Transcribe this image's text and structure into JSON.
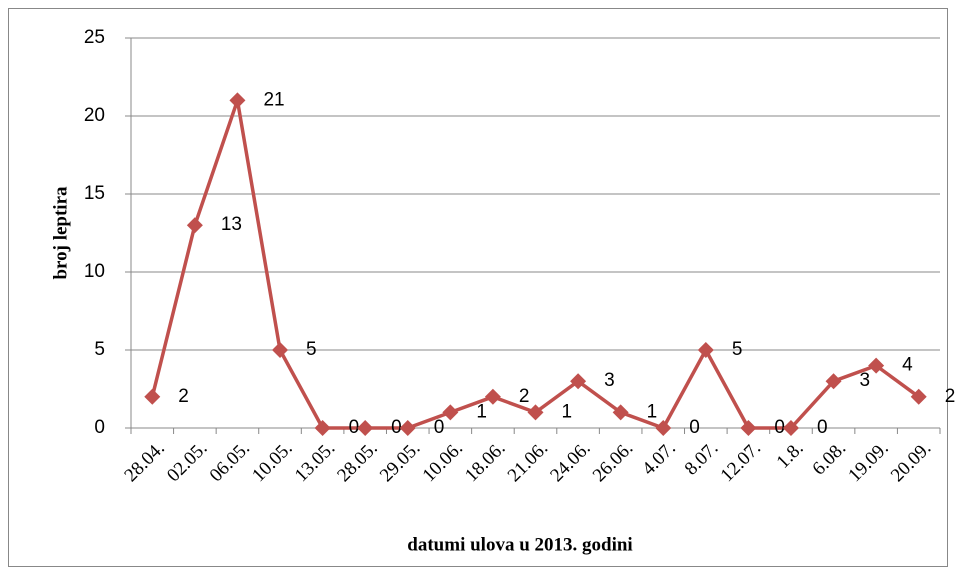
{
  "chart_data": {
    "type": "line",
    "x_label": "datumi ulova u 2013. godini",
    "y_label": "broj leptira",
    "categories": [
      "28.04.",
      "02.05.",
      "06.05.",
      "10.05.",
      "13.05.",
      "28.05.",
      "29.05.",
      "10.06.",
      "18.06.",
      "21.06.",
      "24.06.",
      "26.06.",
      "4.07.",
      "8.07.",
      "12.07.",
      "1.8.",
      "6.08.",
      "19.09.",
      "20.09."
    ],
    "values": [
      2,
      13,
      21,
      5,
      0,
      0,
      0,
      1,
      2,
      1,
      3,
      1,
      0,
      5,
      0,
      0,
      3,
      4,
      2
    ],
    "color": "#c0504d",
    "ylim": [
      0,
      25
    ],
    "yticks": [
      0,
      5,
      10,
      15,
      20,
      25
    ],
    "grid": true
  }
}
